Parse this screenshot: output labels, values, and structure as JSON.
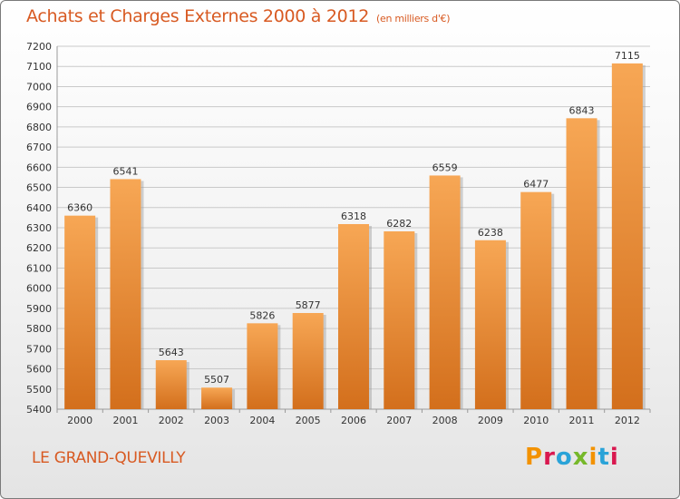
{
  "header": {
    "title": "Achats et Charges Externes 2000 à 2012",
    "subtitle": "(en milliers d'€)"
  },
  "footer": {
    "city": "LE GRAND-QUEVILLY",
    "brand": "Proxiti",
    "brand_colors": [
      "#f39200",
      "#d9184f",
      "#2aa3d8",
      "#76b82a",
      "#f39200",
      "#2aa3d8",
      "#d9184f"
    ]
  },
  "colors": {
    "bar_light": "#f7a755",
    "bar_dark": "#d36f1c",
    "accent": "#d85a22",
    "grid": "#c9c9c9"
  },
  "chart_data": {
    "type": "bar",
    "categories": [
      "2000",
      "2001",
      "2002",
      "2003",
      "2004",
      "2005",
      "2006",
      "2007",
      "2008",
      "2009",
      "2010",
      "2011",
      "2012"
    ],
    "values": [
      6360,
      6541,
      5643,
      5507,
      5826,
      5877,
      6318,
      6282,
      6559,
      6238,
      6477,
      6843,
      7115
    ],
    "title": "Achats et Charges Externes 2000 à 2012",
    "ylim": [
      5400,
      7200
    ],
    "yticks": [
      5400,
      5500,
      5600,
      5700,
      5800,
      5900,
      6000,
      6100,
      6200,
      6300,
      6400,
      6500,
      6600,
      6700,
      6800,
      6900,
      7000,
      7100,
      7200
    ],
    "grid": true,
    "data_labels": true
  }
}
